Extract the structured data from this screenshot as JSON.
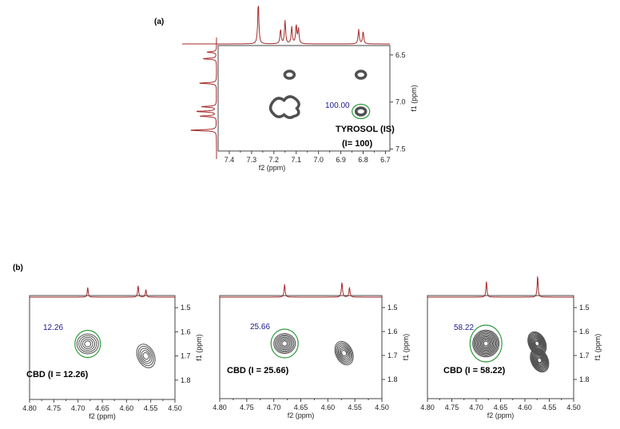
{
  "chart_data": [
    {
      "type": "2d-nmr-contour",
      "panel_label": "(a)",
      "xlabel": "f2 (ppm)",
      "ylabel": "f1 (ppm)",
      "xlim": [
        7.45,
        6.68
      ],
      "ylim": [
        6.4,
        7.52
      ],
      "xticks": [
        "7.4",
        "7.3",
        "7.2",
        "7.1",
        "7.0",
        "6.9",
        "6.8",
        "6.7"
      ],
      "yticks": [
        "6.5",
        "7.0",
        "7.5"
      ],
      "annotation": [
        "TYROSOL (IS)",
        "(I= 100)"
      ],
      "integral_label": "100.00",
      "integrated_peak": {
        "x": 6.81,
        "y": 7.1
      },
      "peaks": [
        {
          "x": 7.13,
          "y": 6.71
        },
        {
          "x": 6.81,
          "y": 6.71
        },
        {
          "x": 7.14,
          "y": 7.05
        },
        {
          "x": 6.81,
          "y": 7.1
        }
      ],
      "top_projection_peaks": [
        [
          7.27,
          1.0
        ],
        [
          7.17,
          0.35
        ],
        [
          7.15,
          0.55
        ],
        [
          7.12,
          0.4
        ],
        [
          7.1,
          0.45
        ],
        [
          7.09,
          0.35
        ],
        [
          6.82,
          0.35
        ],
        [
          6.8,
          0.3
        ]
      ],
      "side_projection_peaks": [
        [
          6.47,
          0.35
        ],
        [
          6.54,
          0.5
        ],
        [
          6.8,
          0.65
        ],
        [
          7.05,
          0.55
        ],
        [
          7.1,
          0.75
        ],
        [
          7.15,
          0.6
        ],
        [
          7.3,
          1.0
        ]
      ]
    },
    {
      "type": "2d-nmr-contour",
      "panel_label": "(b)",
      "xlabel": "f2 (ppm)",
      "ylabel": "f1 (ppm)",
      "xlim": [
        4.8,
        4.5
      ],
      "ylim": [
        1.45,
        1.88
      ],
      "xticks": [
        "4.80",
        "4.75",
        "4.70",
        "4.65",
        "4.60",
        "4.55",
        "4.50"
      ],
      "yticks": [
        "1.5",
        "1.6",
        "1.7",
        "1.8"
      ],
      "annotation": "CBD (I = 12.26)",
      "integral_label": "12.26",
      "integrated_peak": {
        "x": 4.68,
        "y": 1.65
      },
      "peaks": [
        {
          "x": 4.68,
          "y": 1.65
        },
        {
          "x": 4.56,
          "y": 1.7
        }
      ],
      "top_projection_peaks": [
        [
          4.68,
          0.45
        ],
        [
          4.576,
          0.55
        ],
        [
          4.56,
          0.35
        ]
      ]
    },
    {
      "type": "2d-nmr-contour",
      "panel_label": "",
      "xlabel": "f2 (ppm)",
      "ylabel": "f1 (ppm)",
      "xlim": [
        4.8,
        4.5
      ],
      "ylim": [
        1.45,
        1.88
      ],
      "xticks": [
        "4.80",
        "4.75",
        "4.70",
        "4.65",
        "4.60",
        "4.55",
        "4.50"
      ],
      "yticks": [
        "1.5",
        "1.6",
        "1.7",
        "1.8"
      ],
      "annotation": "CBD (I = 25.66)",
      "integral_label": "25.66",
      "integrated_peak": {
        "x": 4.68,
        "y": 1.65
      },
      "peaks": [
        {
          "x": 4.68,
          "y": 1.65
        },
        {
          "x": 4.57,
          "y": 1.69
        }
      ],
      "top_projection_peaks": [
        [
          4.68,
          0.6
        ],
        [
          4.574,
          0.7
        ],
        [
          4.56,
          0.45
        ]
      ]
    },
    {
      "type": "2d-nmr-contour",
      "panel_label": "",
      "xlabel": "f2 (ppm)",
      "ylabel": "f1 (ppm)",
      "xlim": [
        4.8,
        4.5
      ],
      "ylim": [
        1.45,
        1.88
      ],
      "xticks": [
        "4.80",
        "4.75",
        "4.70",
        "4.65",
        "4.60",
        "4.55",
        "4.50"
      ],
      "yticks": [
        "1.5",
        "1.6",
        "1.7",
        "1.8"
      ],
      "annotation": "CBD (I = 58.22)",
      "integral_label": "58.22",
      "integrated_peak": {
        "x": 4.68,
        "y": 1.65
      },
      "peaks": [
        {
          "x": 4.68,
          "y": 1.65
        },
        {
          "x": 4.575,
          "y": 1.65
        },
        {
          "x": 4.57,
          "y": 1.72
        }
      ],
      "top_projection_peaks": [
        [
          4.679,
          0.75
        ],
        [
          4.574,
          1.0
        ]
      ]
    }
  ],
  "colors": {
    "projection": "#a52a2a",
    "contour": "#505050",
    "integral_circle": "#2e9b3c",
    "integral_text": "#1a1a8c"
  }
}
